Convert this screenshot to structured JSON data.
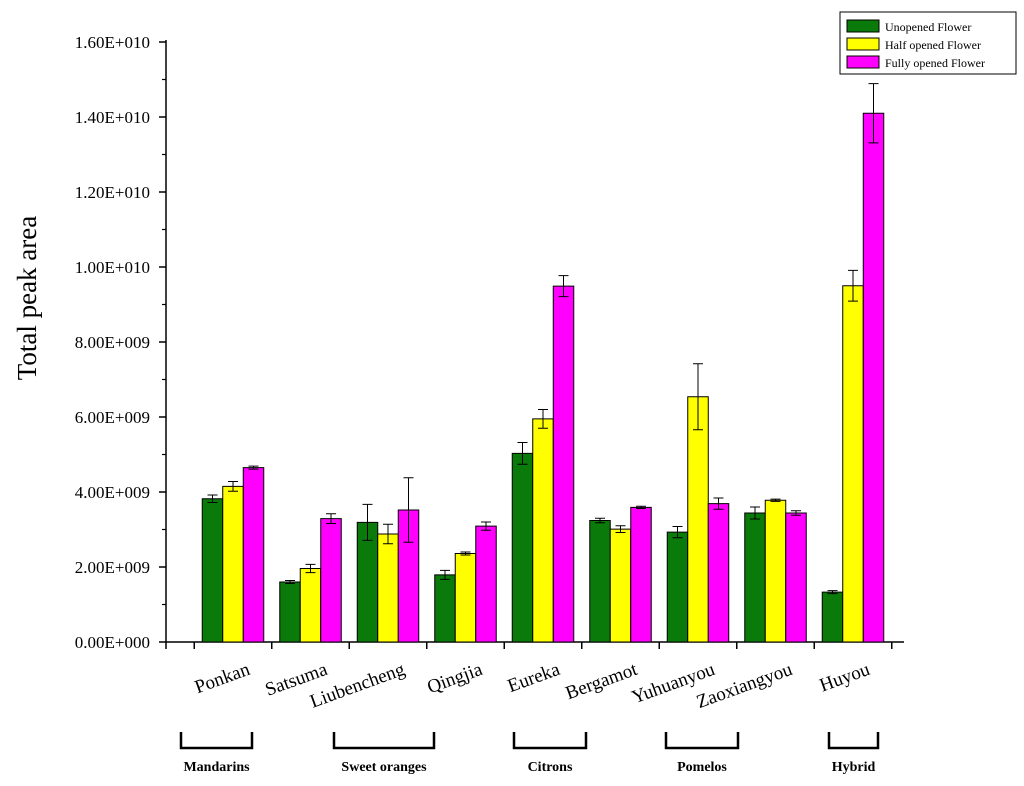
{
  "chart_data": {
    "type": "bar",
    "title": "",
    "xlabel": "",
    "ylabel": "Total peak area",
    "ylim": [
      0,
      16000000000
    ],
    "yticks": [
      0,
      2000000000,
      4000000000,
      6000000000,
      8000000000,
      10000000000,
      12000000000,
      14000000000,
      16000000000
    ],
    "ytick_labels": [
      "0.00E+000",
      "2.00E+009",
      "4.00E+009",
      "6.00E+009",
      "8.00E+009",
      "1.00E+010",
      "1.20E+010",
      "1.40E+010",
      "1.60E+010"
    ],
    "categories": [
      "Ponkan",
      "Satsuma",
      "Liubencheng",
      "Qingjia",
      "Eureka",
      "Bergamot",
      "Yuhuanyou",
      "Zaoxiangyou",
      "Huyou"
    ],
    "series": [
      {
        "name": "Unopened Flower",
        "color": "#0a7a0a",
        "values": [
          3820000000,
          1600000000,
          3190000000,
          1790000000,
          5030000000,
          3240000000,
          2930000000,
          3440000000,
          1330000000
        ],
        "errors": [
          100000000,
          40000000,
          480000000,
          120000000,
          290000000,
          60000000,
          150000000,
          160000000,
          40000000
        ]
      },
      {
        "name": "Half opened Flower",
        "color": "#ffff00",
        "values": [
          4150000000,
          1960000000,
          2880000000,
          2360000000,
          5950000000,
          3010000000,
          6540000000,
          3780000000,
          9500000000
        ],
        "errors": [
          130000000,
          110000000,
          260000000,
          40000000,
          250000000,
          90000000,
          880000000,
          30000000,
          410000000
        ]
      },
      {
        "name": "Fully opened Flower",
        "color": "#ff00ff",
        "values": [
          4650000000,
          3290000000,
          3520000000,
          3090000000,
          9490000000,
          3590000000,
          3690000000,
          3440000000,
          14100000000
        ],
        "errors": [
          40000000,
          130000000,
          860000000,
          110000000,
          280000000,
          30000000,
          150000000,
          60000000,
          790000000
        ]
      }
    ],
    "legend_position": "top-right",
    "groups": [
      {
        "label": "Mandarins",
        "from": 0,
        "to": 0
      },
      {
        "label": "Sweet oranges",
        "from": 1,
        "to": 3
      },
      {
        "label": "Citrons",
        "from": 4,
        "to": 4
      },
      {
        "label": "Pomelos",
        "from": 6,
        "to": 6
      },
      {
        "label": "Hybrid",
        "from": 8,
        "to": 8
      }
    ]
  }
}
